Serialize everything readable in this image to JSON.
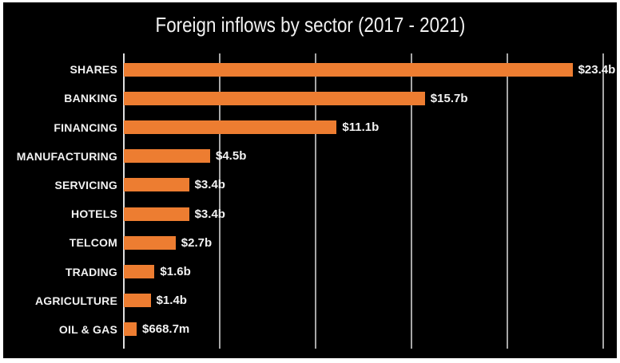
{
  "page": {
    "background_color": "#ffffff"
  },
  "chart": {
    "title": "Foreign inflows by sector (2017 - 2021)",
    "background_color": "#000000",
    "bar_color": "#ed7d31",
    "text_color": "#f2f2f2",
    "gridline_color": "#a6a6a6",
    "axis_line_color": "#e0e0e0"
  },
  "chart_data": {
    "type": "bar",
    "orientation": "horizontal",
    "title": "Foreign inflows by sector (2017 - 2021)",
    "categories": [
      "SHARES",
      "BANKING",
      "FINANCING",
      "MANUFACTURING",
      "SERVICING",
      "HOTELS",
      "TELCOM",
      "TRADING",
      "AGRICULTURE",
      "OIL & GAS"
    ],
    "values": [
      23.4,
      15.7,
      11.1,
      4.5,
      3.4,
      3.4,
      2.7,
      1.6,
      1.4,
      0.6687
    ],
    "value_labels": [
      "$23.4b",
      "$15.7b",
      "$11.1b",
      "$4.5b",
      "$3.4b",
      "$3.4b",
      "$2.7b",
      "$1.6b",
      "$1.4b",
      "$668.7m"
    ],
    "unit": "USD billions",
    "xlabel": "",
    "ylabel": "",
    "xlim": [
      0,
      25
    ],
    "gridline_interval": 5,
    "grid": true,
    "axis_tick_labels_shown": false,
    "legend": false,
    "data_labels": "outside-end"
  }
}
